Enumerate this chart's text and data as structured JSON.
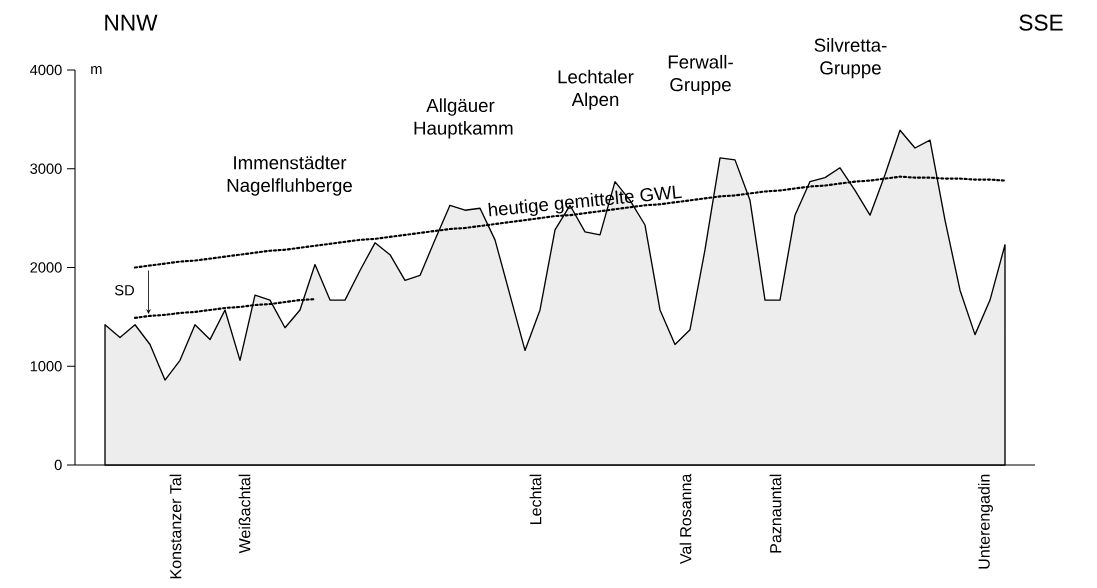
{
  "chart_data": {
    "type": "area",
    "ylabel": "m",
    "categories": [
      null,
      null,
      null,
      null,
      null,
      null,
      null,
      null,
      null,
      null,
      null,
      null,
      null,
      null,
      null,
      null,
      null,
      null,
      null,
      null,
      null,
      null,
      null,
      null,
      null,
      null,
      null,
      null,
      null,
      null,
      null,
      null,
      null,
      null,
      null,
      null,
      null,
      null,
      null,
      null,
      null,
      null,
      null,
      null,
      null,
      null,
      null,
      null,
      null,
      null,
      null,
      null,
      null,
      null,
      null,
      null,
      null,
      null,
      null,
      null,
      null
    ],
    "series": [
      {
        "color": "#000000",
        "values": [
          1420,
          1290,
          1420,
          1220,
          860,
          1060,
          1420,
          1270,
          1570,
          1060,
          1720,
          1670,
          1390,
          1570,
          2030,
          1670,
          1670,
          1970,
          2250,
          2130,
          1870,
          1920,
          2280,
          2630,
          2580,
          2600,
          2280,
          1720,
          1160,
          1570,
          2380,
          2630,
          2360,
          2330,
          2870,
          2680,
          2430,
          1570,
          1220,
          1370,
          2180,
          3110,
          3090,
          2680,
          1670,
          1670,
          2530,
          2870,
          2910,
          3010,
          2780,
          2530,
          2940,
          3390,
          3210,
          3290,
          2480,
          1770,
          1320,
          1670,
          2230
        ]
      },
      {
        "type": "line",
        "line_style": "dotted",
        "color": "#000000",
        "values": [
          null,
          null,
          2000,
          2020,
          2040,
          2060,
          2070,
          2090,
          2110,
          2130,
          2150,
          2170,
          2180,
          2200,
          2220,
          2240,
          2260,
          2280,
          2290,
          2310,
          2330,
          2350,
          2370,
          2390,
          2400,
          2420,
          2440,
          2460,
          2480,
          2500,
          2520,
          2530,
          2550,
          2570,
          2590,
          2610,
          2630,
          2640,
          2660,
          2680,
          2700,
          2720,
          2730,
          2750,
          2770,
          2780,
          2800,
          2820,
          2830,
          2850,
          2870,
          2880,
          2900,
          2920,
          2910,
          2910,
          2900,
          2900,
          2890,
          2890,
          2880
        ]
      },
      {
        "type": "line",
        "line_style": "dotted",
        "color": "#000000",
        "values": [
          null,
          null,
          1490,
          1510,
          1520,
          1540,
          1550,
          1570,
          1590,
          1600,
          1620,
          1630,
          1650,
          1670,
          1680,
          null,
          null,
          null,
          null,
          null,
          null,
          null,
          null,
          null,
          null,
          null,
          null,
          null,
          null,
          null,
          null,
          null,
          null,
          null,
          null,
          null,
          null,
          null,
          null,
          null,
          null,
          null,
          null,
          null,
          null,
          null,
          null,
          null,
          null,
          null,
          null,
          null,
          null,
          null,
          null,
          null,
          null,
          null,
          null,
          null,
          null
        ]
      }
    ],
    "ylim": [
      0,
      4000
    ],
    "yticks": [
      0,
      1000,
      2000,
      3000,
      4000
    ],
    "tick_labels": "y",
    "annotations": [
      "NNW",
      "SSE",
      "Immenstädter Nagelfluhberge",
      "Allgäuer Hauptkamm",
      "Lechtaler Alpen",
      "Ferwall-Gruppe",
      "Silvretta-Gruppe",
      "Konstanzer Tal",
      "Weißachtal",
      "Lechtal",
      "Val Rosanna",
      "Paznauntal",
      "Unterengadin",
      "SD",
      "heutige gemittelte GWL"
    ]
  }
}
